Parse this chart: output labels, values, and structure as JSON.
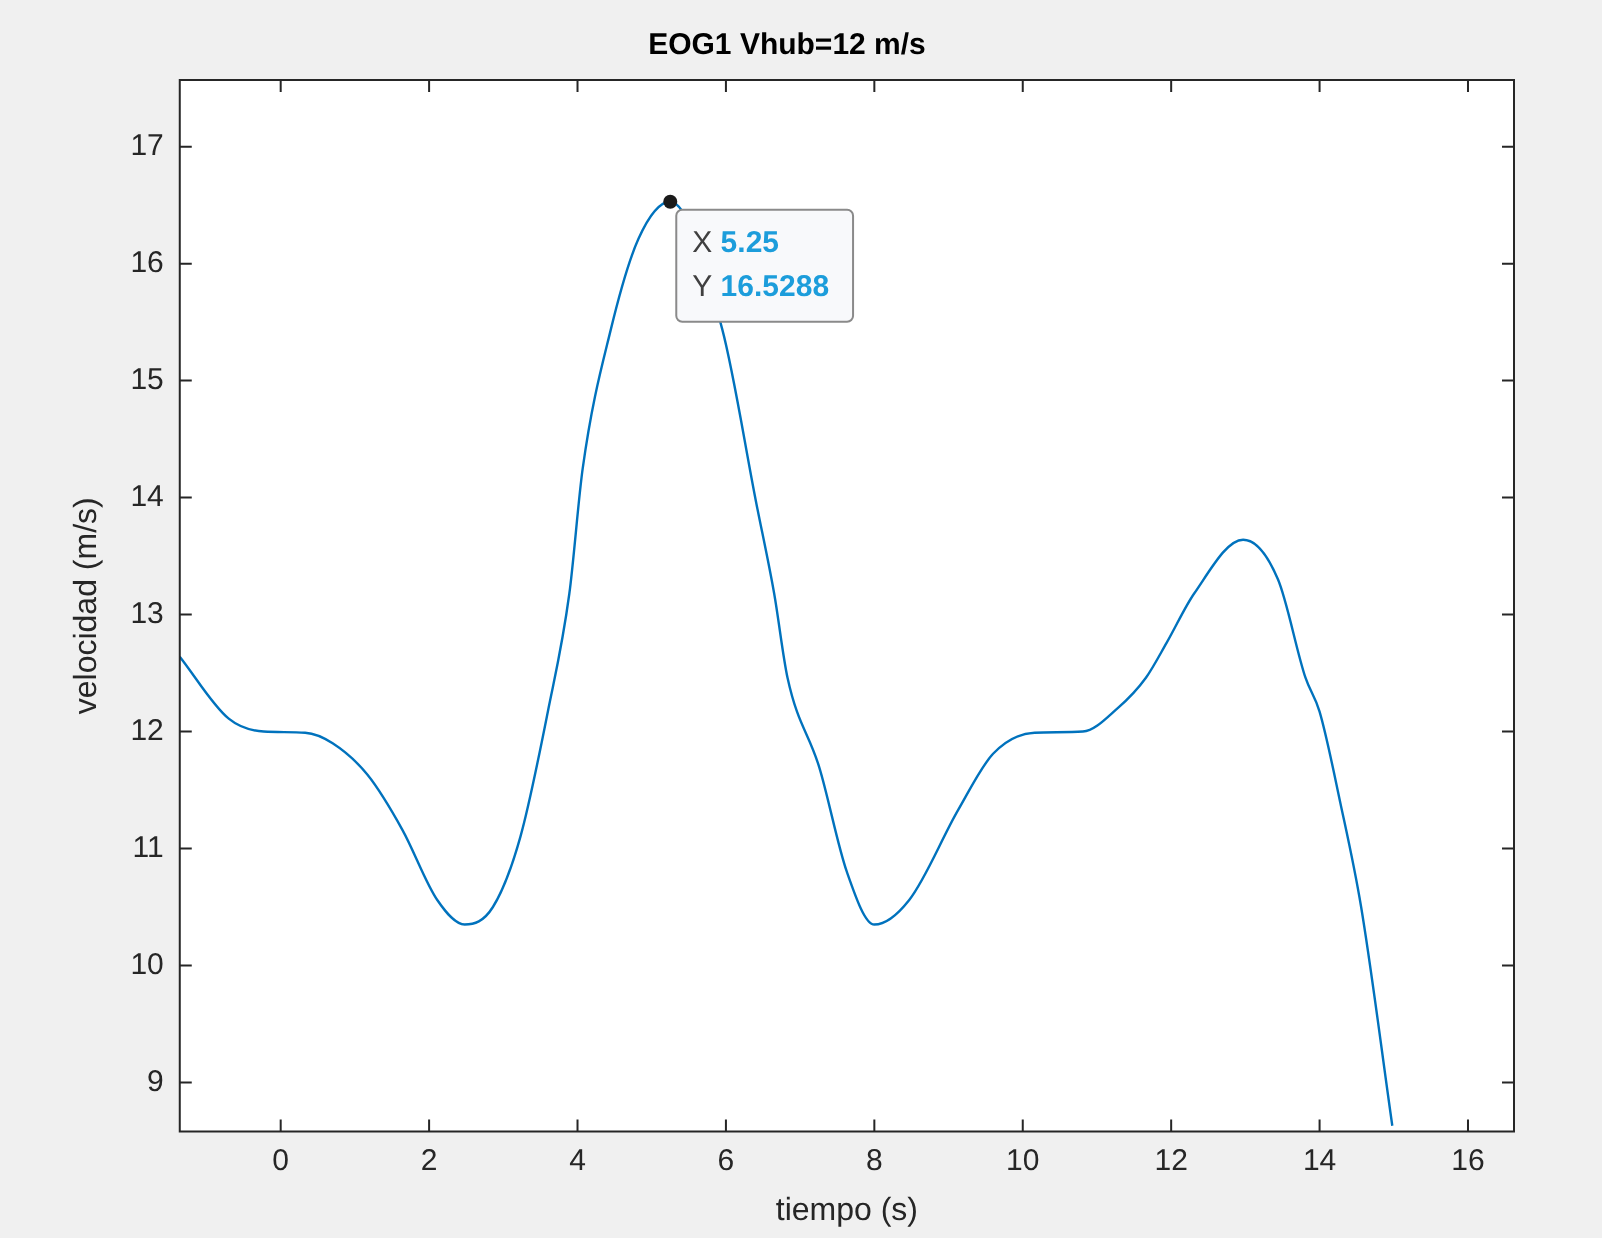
{
  "chart_data": {
    "type": "line",
    "title": "EOG1 Vhub=12 m/s",
    "xlabel": "tiempo (s)",
    "ylabel": "velocidad (m/s)",
    "x": [
      -1.36,
      -0.7,
      -0.23,
      0.33,
      0.7,
      1.17,
      1.64,
      2.11,
      2.48,
      2.86,
      3.23,
      3.6,
      3.89,
      4.07,
      4.45,
      4.82,
      5.25,
      5.95,
      6.41,
      6.65,
      6.83,
      7.26,
      7.63,
      8.0,
      8.47,
      9.13,
      9.6,
      10.16,
      10.81,
      11.28,
      11.66,
      11.94,
      12.31,
      12.97,
      13.44,
      13.81,
      14.0,
      14.28,
      14.56,
      14.98
    ],
    "series": [
      {
        "color": "#0072bd",
        "values": [
          12.64,
          12.11,
          12.0,
          11.99,
          11.9,
          11.63,
          11.16,
          10.56,
          10.35,
          10.5,
          11.1,
          12.17,
          13.18,
          14.25,
          15.44,
          16.21,
          16.5288,
          15.44,
          13.95,
          13.18,
          12.46,
          11.69,
          10.8,
          10.35,
          10.56,
          11.33,
          11.81,
          11.99,
          12.0,
          12.2,
          12.46,
          12.76,
          13.18,
          13.64,
          13.3,
          12.46,
          12.17,
          11.39,
          10.5,
          8.63
        ]
      }
    ],
    "xlim": [
      -1.36,
      16.62
    ],
    "ylim": [
      8.58,
      17.57
    ],
    "xticks": [
      0,
      2,
      4,
      6,
      8,
      10,
      12,
      14,
      16
    ],
    "yticks": [
      9,
      10,
      11,
      12,
      13,
      14,
      15,
      16,
      17
    ],
    "grid": false,
    "legend": false,
    "marker": "none",
    "line_style": "solid",
    "annotations": [
      {
        "text": "X 5.25\nY 16.5288",
        "x": 5.25,
        "y": 16.5288
      }
    ]
  }
}
